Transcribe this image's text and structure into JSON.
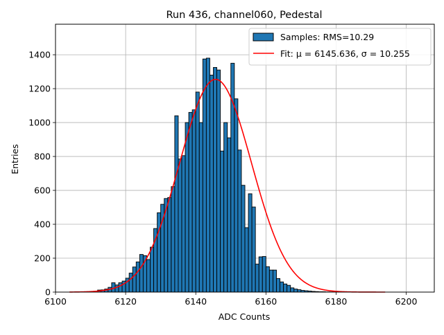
{
  "chart_data": {
    "type": "bar",
    "title": "Run 436, channel060, Pedestal",
    "xlabel": "ADC Counts",
    "ylabel": "Entries",
    "xlim": [
      6100,
      6208
    ],
    "ylim": [
      0,
      1580
    ],
    "xticks": [
      6100,
      6120,
      6140,
      6160,
      6180,
      6200
    ],
    "yticks": [
      0,
      200,
      400,
      600,
      800,
      1000,
      1200,
      1400
    ],
    "grid": true,
    "legend_position": "top-right",
    "bin_width": 1,
    "hist_color": "#1f77b4",
    "fit_color": "#ff0000",
    "series": [
      {
        "name": "Samples: RMS=10.29",
        "kind": "histogram",
        "bin_edges_start": [
          6112,
          6113,
          6114,
          6115,
          6116,
          6117,
          6118,
          6119,
          6120,
          6121,
          6122,
          6123,
          6124,
          6125,
          6126,
          6127,
          6128,
          6129,
          6130,
          6131,
          6132,
          6133,
          6134,
          6135,
          6136,
          6137,
          6138,
          6139,
          6140,
          6141,
          6142,
          6143,
          6144,
          6145,
          6146,
          6147,
          6148,
          6149,
          6150,
          6151,
          6152,
          6153,
          6154,
          6155,
          6156,
          6157,
          6158,
          6159,
          6160,
          6161,
          6162,
          6163,
          6164,
          6165,
          6166,
          6167,
          6168,
          6169,
          6170,
          6171,
          6172,
          6173,
          6174,
          6175,
          6176,
          6177,
          6178,
          6179,
          6180,
          6181
        ],
        "values": [
          12,
          13,
          18,
          28,
          55,
          42,
          55,
          65,
          82,
          112,
          148,
          178,
          222,
          215,
          192,
          265,
          375,
          468,
          518,
          552,
          558,
          622,
          1040,
          785,
          805,
          1000,
          1060,
          1075,
          1180,
          1000,
          1375,
          1380,
          1280,
          1325,
          1310,
          832,
          1000,
          910,
          1350,
          1140,
          838,
          630,
          380,
          580,
          502,
          165,
          208,
          210,
          150,
          130,
          130,
          80,
          60,
          48,
          40,
          25,
          18,
          14,
          10,
          8,
          6,
          4,
          3,
          2,
          2,
          1,
          1,
          1,
          1,
          1
        ]
      },
      {
        "name": "Fit: μ = 6145.636, σ = 10.255",
        "kind": "gaussian_fit",
        "mu": 6145.636,
        "sigma": 10.255,
        "amplitude": 1255,
        "x_range": [
          6104,
          6194
        ]
      }
    ]
  }
}
